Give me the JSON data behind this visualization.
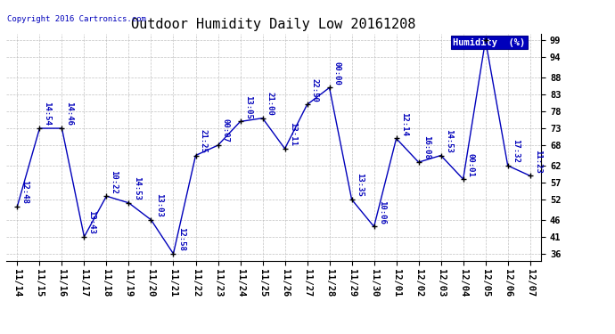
{
  "title": "Outdoor Humidity Daily Low 20161208",
  "copyright": "Copyright 2016 Cartronics.com",
  "legend_label": "Humidity  (%)",
  "x_labels": [
    "11/14",
    "11/15",
    "11/16",
    "11/17",
    "11/18",
    "11/19",
    "11/20",
    "11/21",
    "11/22",
    "11/23",
    "11/24",
    "11/25",
    "11/26",
    "11/27",
    "11/28",
    "11/29",
    "11/30",
    "12/01",
    "12/02",
    "12/03",
    "12/04",
    "12/05",
    "12/06",
    "12/07"
  ],
  "y_values": [
    50,
    73,
    73,
    41,
    53,
    51,
    46,
    36,
    65,
    68,
    75,
    76,
    67,
    80,
    85,
    52,
    44,
    70,
    63,
    65,
    58,
    99,
    62,
    59
  ],
  "point_labels": [
    "12:48",
    "14:54",
    "14:46",
    "13:43",
    "10:22",
    "14:53",
    "13:03",
    "12:58",
    "21:25",
    "00:07",
    "13:05",
    "21:00",
    "13:11",
    "22:50",
    "00:00",
    "13:35",
    "10:06",
    "12:14",
    "16:08",
    "14:53",
    "00:01",
    "",
    "17:32",
    "11:23"
  ],
  "line_color": "#0000bb",
  "marker_color": "#000000",
  "bg_color": "#ffffff",
  "grid_color": "#bbbbbb",
  "ylim": [
    34,
    101
  ],
  "yticks": [
    36,
    41,
    46,
    52,
    57,
    62,
    68,
    73,
    78,
    83,
    88,
    94,
    99
  ],
  "title_fontsize": 11,
  "label_fontsize": 6.5,
  "tick_fontsize": 7.5,
  "copyright_fontsize": 6.5,
  "legend_bg": "#0000bb",
  "legend_fg": "#ffffff",
  "legend_fontsize": 7.5
}
